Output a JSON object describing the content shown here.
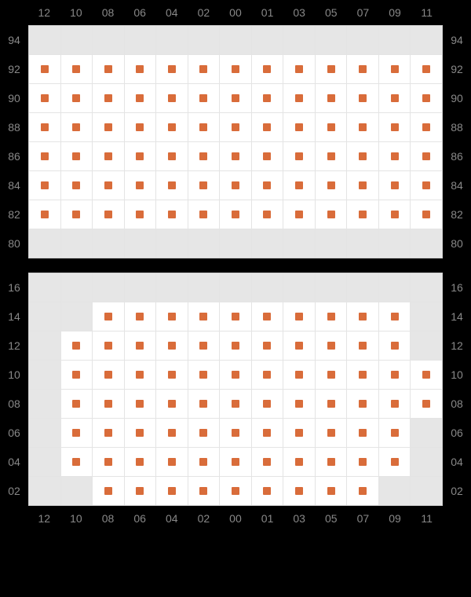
{
  "layout": {
    "pageWidth": 600,
    "pageHeight": 760,
    "backgroundColor": "#000000",
    "gridBackgroundColor": "#ffffff",
    "blankCellColor": "#e6e6e6",
    "gridBorderColor": "#d0d0d0",
    "cellBorderColor": "#e4e4e4",
    "labelColor": "#888888",
    "labelFontSize": 14
  },
  "seatStyle": {
    "type": "marker-grid",
    "markerShape": "square",
    "markerSize": 10,
    "markerColor": "#d96c3a",
    "markerBorderRadius": 1
  },
  "columns": [
    "12",
    "10",
    "08",
    "06",
    "04",
    "02",
    "00",
    "01",
    "03",
    "05",
    "07",
    "09",
    "11"
  ],
  "sections": [
    {
      "id": "upper",
      "showColumnLabelsTop": true,
      "showColumnLabelsBottom": false,
      "rowLabels": [
        "94",
        "92",
        "90",
        "88",
        "86",
        "84",
        "82",
        "80"
      ],
      "cells": [
        [
          "blank",
          "blank",
          "blank",
          "blank",
          "blank",
          "blank",
          "blank",
          "blank",
          "blank",
          "blank",
          "blank",
          "blank",
          "blank"
        ],
        [
          "seat",
          "seat",
          "seat",
          "seat",
          "seat",
          "seat",
          "seat",
          "seat",
          "seat",
          "seat",
          "seat",
          "seat",
          "seat"
        ],
        [
          "seat",
          "seat",
          "seat",
          "seat",
          "seat",
          "seat",
          "seat",
          "seat",
          "seat",
          "seat",
          "seat",
          "seat",
          "seat"
        ],
        [
          "seat",
          "seat",
          "seat",
          "seat",
          "seat",
          "seat",
          "seat",
          "seat",
          "seat",
          "seat",
          "seat",
          "seat",
          "seat"
        ],
        [
          "seat",
          "seat",
          "seat",
          "seat",
          "seat",
          "seat",
          "seat",
          "seat",
          "seat",
          "seat",
          "seat",
          "seat",
          "seat"
        ],
        [
          "seat",
          "seat",
          "seat",
          "seat",
          "seat",
          "seat",
          "seat",
          "seat",
          "seat",
          "seat",
          "seat",
          "seat",
          "seat"
        ],
        [
          "seat",
          "seat",
          "seat",
          "seat",
          "seat",
          "seat",
          "seat",
          "seat",
          "seat",
          "seat",
          "seat",
          "seat",
          "seat"
        ],
        [
          "blank",
          "blank",
          "blank",
          "blank",
          "blank",
          "blank",
          "blank",
          "blank",
          "blank",
          "blank",
          "blank",
          "blank",
          "blank"
        ]
      ]
    },
    {
      "id": "lower",
      "showColumnLabelsTop": false,
      "showColumnLabelsBottom": true,
      "rowLabels": [
        "16",
        "14",
        "12",
        "10",
        "08",
        "06",
        "04",
        "02"
      ],
      "cells": [
        [
          "blank",
          "blank",
          "blank",
          "blank",
          "blank",
          "blank",
          "blank",
          "blank",
          "blank",
          "blank",
          "blank",
          "blank",
          "blank"
        ],
        [
          "blank",
          "blank",
          "seat",
          "seat",
          "seat",
          "seat",
          "seat",
          "seat",
          "seat",
          "seat",
          "seat",
          "seat",
          "blank"
        ],
        [
          "blank",
          "seat",
          "seat",
          "seat",
          "seat",
          "seat",
          "seat",
          "seat",
          "seat",
          "seat",
          "seat",
          "seat",
          "blank"
        ],
        [
          "blank",
          "seat",
          "seat",
          "seat",
          "seat",
          "seat",
          "seat",
          "seat",
          "seat",
          "seat",
          "seat",
          "seat",
          "seat"
        ],
        [
          "blank",
          "seat",
          "seat",
          "seat",
          "seat",
          "seat",
          "seat",
          "seat",
          "seat",
          "seat",
          "seat",
          "seat",
          "seat"
        ],
        [
          "blank",
          "seat",
          "seat",
          "seat",
          "seat",
          "seat",
          "seat",
          "seat",
          "seat",
          "seat",
          "seat",
          "seat",
          "blank"
        ],
        [
          "blank",
          "seat",
          "seat",
          "seat",
          "seat",
          "seat",
          "seat",
          "seat",
          "seat",
          "seat",
          "seat",
          "seat",
          "blank"
        ],
        [
          "blank",
          "blank",
          "seat",
          "seat",
          "seat",
          "seat",
          "seat",
          "seat",
          "seat",
          "seat",
          "seat",
          "blank",
          "blank"
        ]
      ]
    }
  ]
}
